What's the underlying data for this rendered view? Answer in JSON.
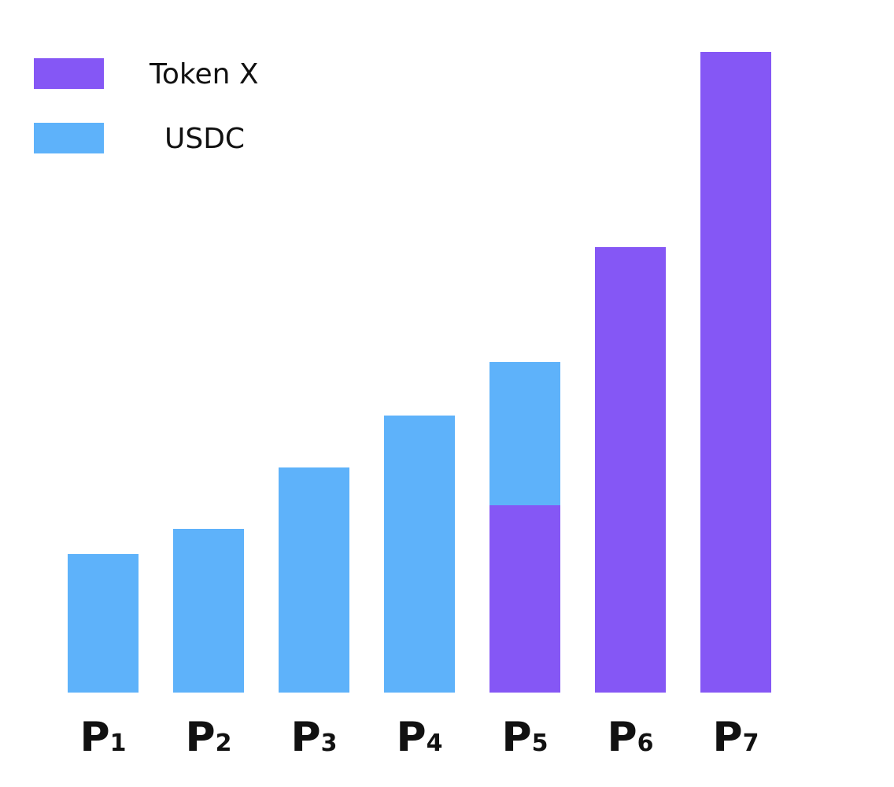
{
  "chart_data": {
    "type": "bar",
    "stacked": true,
    "categories": [
      "P1",
      "P2",
      "P3",
      "P4",
      "P5",
      "P6",
      "P7"
    ],
    "category_labels": [
      {
        "main": "P",
        "sub": "1"
      },
      {
        "main": "P",
        "sub": "2"
      },
      {
        "main": "P",
        "sub": "3"
      },
      {
        "main": "P",
        "sub": "4"
      },
      {
        "main": "P",
        "sub": "5"
      },
      {
        "main": "P",
        "sub": "6"
      },
      {
        "main": "P",
        "sub": "7"
      }
    ],
    "series": [
      {
        "name": "Token X",
        "color": "#8557f5",
        "values": [
          0,
          0,
          0,
          0,
          238,
          566,
          814
        ]
      },
      {
        "name": "USDC",
        "color": "#5eb2fa",
        "values": [
          176,
          208,
          286,
          352,
          182,
          0,
          0
        ]
      }
    ],
    "ylim": [
      0,
      814
    ],
    "grid": false,
    "axes_visible": false,
    "legend": "top-left",
    "title": "",
    "xlabel": "",
    "ylabel": ""
  }
}
